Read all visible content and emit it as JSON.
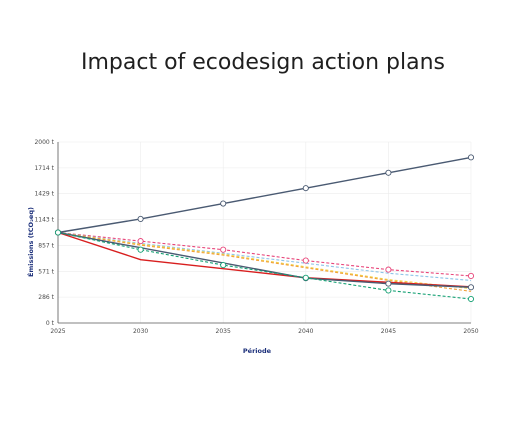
{
  "chart_data": {
    "type": "line",
    "title": "Impact of ecodesign action plans",
    "xlabel": "Période",
    "ylabel": "Émissions (tCO₂eq)",
    "x": [
      2025,
      2030,
      2035,
      2040,
      2045,
      2050
    ],
    "x_tick_labels": [
      "2025",
      "2030",
      "2035",
      "2040",
      "2045",
      "2050"
    ],
    "ylim": [
      0,
      2000
    ],
    "y_ticks": [
      0,
      286,
      571,
      857,
      1143,
      1429,
      1714,
      2000
    ],
    "y_tick_labels": [
      "0 t",
      "286 t",
      "571 t",
      "857 t",
      "1143 t",
      "1429 t",
      "1714 t",
      "2000 t"
    ],
    "grid": true,
    "series": [
      {
        "color": "#4a5a72",
        "dashed": false,
        "markers": true,
        "values": [
          1000,
          1150,
          1320,
          1490,
          1660,
          1830
        ]
      },
      {
        "color": "#e8457a",
        "dashed": true,
        "markers": true,
        "values": [
          1000,
          905,
          810,
          690,
          590,
          520
        ]
      },
      {
        "color": "#8fc4e8",
        "dashed": true,
        "markers": false,
        "values": [
          1000,
          880,
          770,
          660,
          550,
          470
        ]
      },
      {
        "color": "#f2d24a",
        "dashed": true,
        "markers": false,
        "values": [
          1000,
          870,
          760,
          620,
          480,
          380
        ]
      },
      {
        "color": "#f2a13a",
        "dashed": true,
        "markers": false,
        "values": [
          1000,
          860,
          750,
          610,
          470,
          350
        ]
      },
      {
        "color": "#d81f1f",
        "dashed": false,
        "markers": false,
        "values": [
          1000,
          700,
          600,
          500,
          450,
          400
        ]
      },
      {
        "color": "#4a5a72",
        "dashed": false,
        "markers": true,
        "values": [
          1000,
          null,
          null,
          495,
          435,
          395
        ]
      },
      {
        "color": "#14a073",
        "dashed": true,
        "markers": true,
        "values": [
          1000,
          810,
          640,
          500,
          360,
          265
        ]
      }
    ]
  }
}
